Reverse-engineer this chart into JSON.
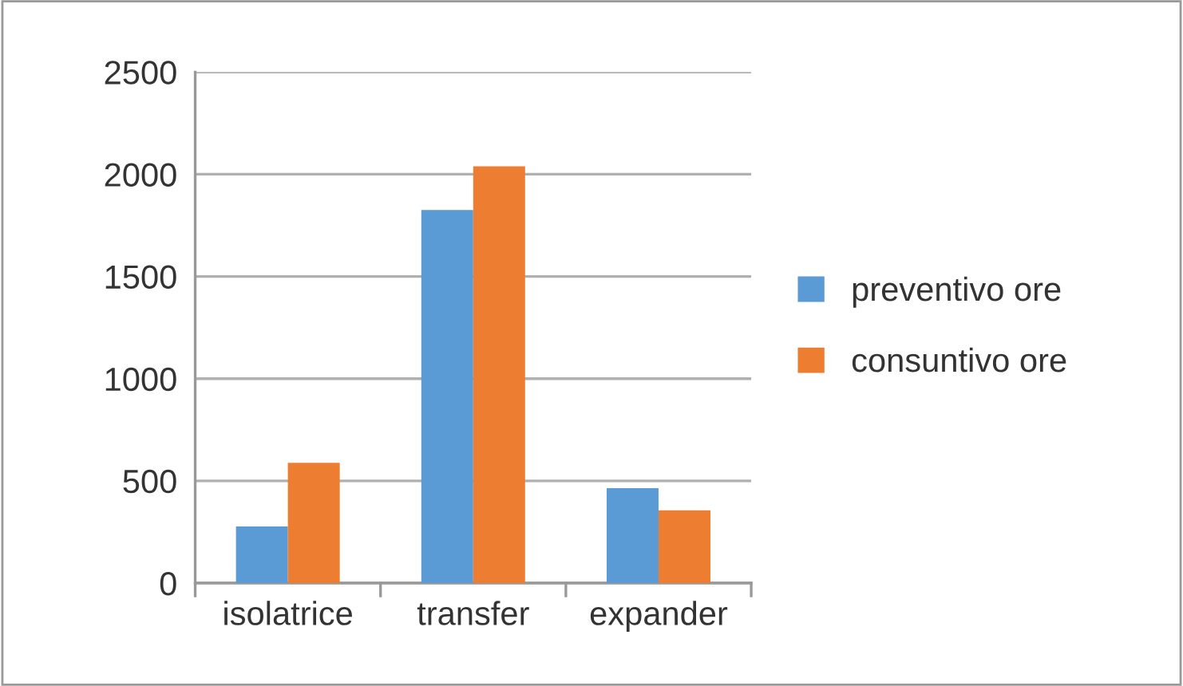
{
  "chart_data": {
    "type": "bar",
    "categories": [
      "isolatrice",
      "transfer",
      "expander"
    ],
    "series": [
      {
        "name": "preventivo ore",
        "color": "#5b9bd5",
        "values": [
          277,
          1825,
          464
        ]
      },
      {
        "name": "consuntivo ore",
        "color": "#ed7d31",
        "values": [
          588,
          2039,
          356
        ]
      }
    ],
    "ylim": [
      0,
      2500
    ],
    "yticks": [
      0,
      500,
      1000,
      1500,
      2000,
      2500
    ],
    "grid": "y",
    "legend": "right"
  }
}
